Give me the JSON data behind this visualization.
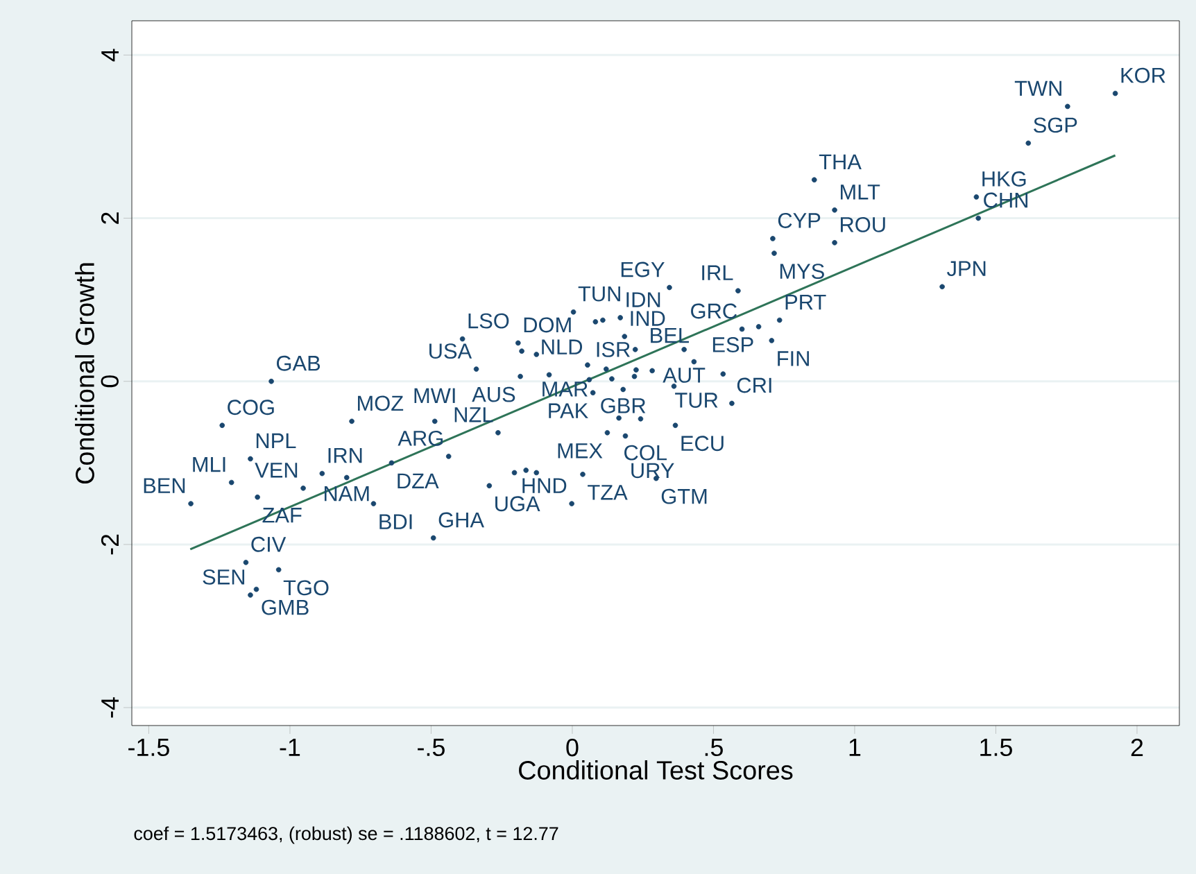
{
  "chart_data": {
    "type": "scatter",
    "xlabel": "Conditional Test Scores",
    "ylabel": "Conditional Growth",
    "xlim": [
      -1.56,
      2.15
    ],
    "ylim": [
      -4.22,
      4.42
    ],
    "xticks": [
      -1.5,
      -1,
      {
        "value": -0.5,
        "label": "-.5"
      },
      0,
      {
        "value": 0.5,
        "label": ".5"
      },
      1,
      1.5,
      2
    ],
    "yticks": [
      -4,
      -2,
      0,
      2,
      4
    ],
    "grid": "y",
    "series": [
      {
        "color": "#1a476f",
        "marker": "circle",
        "x": [
          1.923,
          1.754,
          1.615,
          0.857,
          0.929,
          1.431,
          1.438,
          0.71,
          0.715,
          0.929,
          1.31,
          0.587,
          0.344,
          0.734,
          0.601,
          0.66,
          0.706,
          0.004,
          0.082,
          0.108,
          0.17,
          0.185,
          0.223,
          0.396,
          0.431,
          -0.389,
          -0.192,
          -0.179,
          -0.127,
          -0.34,
          -0.184,
          -0.082,
          0.054,
          0.12,
          0.226,
          0.283,
          0.534,
          0.06,
          0.14,
          0.22,
          0.073,
          0.18,
          0.36,
          0.565,
          0.165,
          0.242,
          0.365,
          0.124,
          0.188,
          -0.263,
          -0.438,
          -0.205,
          -0.164,
          -0.127,
          0.037,
          -0.294,
          0.297,
          -0.002,
          -1.066,
          -1.24,
          -0.781,
          -0.487,
          -1.14,
          -1.207,
          -1.351,
          -1.115,
          -0.953,
          -0.886,
          -0.799,
          -0.64,
          -0.704,
          -0.492,
          -1.156,
          -1.04,
          -1.119,
          -1.14
        ],
        "values": [
          3.53,
          3.37,
          2.92,
          2.47,
          2.1,
          2.26,
          2.0,
          1.75,
          1.57,
          1.7,
          1.16,
          1.11,
          1.15,
          0.75,
          0.64,
          0.67,
          0.5,
          0.85,
          0.73,
          0.75,
          0.78,
          0.55,
          0.39,
          0.39,
          0.24,
          0.52,
          0.47,
          0.37,
          0.33,
          0.15,
          0.06,
          0.08,
          0.2,
          0.15,
          0.14,
          0.13,
          0.09,
          0.02,
          0.03,
          0.06,
          -0.14,
          -0.1,
          -0.06,
          -0.27,
          -0.45,
          -0.46,
          -0.54,
          -0.63,
          -0.67,
          -0.63,
          -0.92,
          -1.12,
          -1.09,
          -1.12,
          -1.14,
          -1.28,
          -1.19,
          -1.5,
          0,
          -0.54,
          -0.49,
          -0.49,
          -0.95,
          -1.24,
          -1.5,
          -1.42,
          -1.31,
          -1.13,
          -1.18,
          -1.0,
          -1.5,
          -1.92,
          -2.22,
          -2.31,
          -2.55,
          -2.62
        ]
      },
      {
        "type": "line",
        "color": "#2e7458",
        "marker": "none",
        "line_style": "solid",
        "x": [
          -1.353,
          1.923
        ],
        "values": [
          -2.06,
          2.77
        ]
      }
    ],
    "annotations": [
      {
        "text": "KOR",
        "x": 1.923,
        "y": 3.53
      },
      {
        "text": "TWN",
        "x": 1.754,
        "y": 3.37
      },
      {
        "text": "SGP",
        "x": 1.615,
        "y": 2.92
      },
      {
        "text": "THA",
        "x": 0.857,
        "y": 2.47
      },
      {
        "text": "MLT",
        "x": 0.929,
        "y": 2.1
      },
      {
        "text": "HKG",
        "x": 1.431,
        "y": 2.26
      },
      {
        "text": "CHN",
        "x": 1.438,
        "y": 2.0
      },
      {
        "text": "CYP",
        "x": 0.71,
        "y": 1.75
      },
      {
        "text": "MYS",
        "x": 0.715,
        "y": 1.57
      },
      {
        "text": "ROU",
        "x": 0.929,
        "y": 1.7
      },
      {
        "text": "JPN",
        "x": 1.31,
        "y": 1.16
      },
      {
        "text": "IRL",
        "x": 0.587,
        "y": 1.11
      },
      {
        "text": "EGY",
        "x": 0.344,
        "y": 1.15
      },
      {
        "text": "PRT",
        "x": 0.734,
        "y": 0.75
      },
      {
        "text": "GRC",
        "x": 0.601,
        "y": 0.64
      },
      {
        "text": "ESP",
        "x": 0.66,
        "y": 0.67
      },
      {
        "text": "FIN",
        "x": 0.706,
        "y": 0.5
      },
      {
        "text": "TUN",
        "x": 0.004,
        "y": 0.85
      },
      {
        "text": "IDN",
        "x": 0.17,
        "y": 0.78
      },
      {
        "text": "IND",
        "x": 0.185,
        "y": 0.55
      },
      {
        "text": "ISR",
        "x": 0.223,
        "y": 0.39
      },
      {
        "text": "AUT",
        "x": 0.396,
        "y": 0.39
      },
      {
        "text": "BEL",
        "x": 0.431,
        "y": 0.24
      },
      {
        "text": "LSO",
        "x": -0.389,
        "y": 0.52
      },
      {
        "text": "DOM",
        "x": -0.192,
        "y": 0.47
      },
      {
        "text": "MAR",
        "x": -0.127,
        "y": 0.33
      },
      {
        "text": "USA",
        "x": -0.34,
        "y": 0.15
      },
      {
        "text": "AUS",
        "x": -0.184,
        "y": 0.06
      },
      {
        "text": "NLD",
        "x": 0.054,
        "y": 0.2
      },
      {
        "text": "TUR",
        "x": 0.534,
        "y": 0.09
      },
      {
        "text": "PAK",
        "x": 0.073,
        "y": -0.14
      },
      {
        "text": "GBR",
        "x": 0.18,
        "y": -0.1
      },
      {
        "text": "CRI",
        "x": 0.565,
        "y": -0.27
      },
      {
        "text": "COL",
        "x": 0.165,
        "y": -0.45
      },
      {
        "text": "ECU",
        "x": 0.365,
        "y": -0.54
      },
      {
        "text": "MEX",
        "x": 0.124,
        "y": -0.63
      },
      {
        "text": "URY",
        "x": 0.188,
        "y": -0.67
      },
      {
        "text": "NZL",
        "x": -0.263,
        "y": -0.63
      },
      {
        "text": "ARG",
        "x": -0.438,
        "y": -0.92
      },
      {
        "text": "TZA",
        "x": 0.037,
        "y": -1.14
      },
      {
        "text": "UGA",
        "x": -0.294,
        "y": -1.28
      },
      {
        "text": "GTM",
        "x": 0.297,
        "y": -1.19
      },
      {
        "text": "HND",
        "x": -0.002,
        "y": -1.5
      },
      {
        "text": "GAB",
        "x": -1.066,
        "y": 0
      },
      {
        "text": "COG",
        "x": -1.24,
        "y": -0.54
      },
      {
        "text": "MOZ",
        "x": -0.781,
        "y": -0.49
      },
      {
        "text": "MWI",
        "x": -0.487,
        "y": -0.49
      },
      {
        "text": "NPL",
        "x": -1.14,
        "y": -0.95
      },
      {
        "text": "MLI",
        "x": -1.207,
        "y": -1.24
      },
      {
        "text": "BEN",
        "x": -1.351,
        "y": -1.5
      },
      {
        "text": "ZAF",
        "x": -1.115,
        "y": -1.42
      },
      {
        "text": "VEN",
        "x": -0.953,
        "y": -1.31
      },
      {
        "text": "IRN",
        "x": -0.886,
        "y": -1.13
      },
      {
        "text": "NAM",
        "x": -0.799,
        "y": -1.18
      },
      {
        "text": "DZA",
        "x": -0.64,
        "y": -1.0
      },
      {
        "text": "BDI",
        "x": -0.704,
        "y": -1.5
      },
      {
        "text": "GHA",
        "x": -0.492,
        "y": -1.92
      },
      {
        "text": "CIV",
        "x": -1.156,
        "y": -2.22
      },
      {
        "text": "TGO",
        "x": -1.04,
        "y": -2.31
      },
      {
        "text": "GMB",
        "x": -1.119,
        "y": -2.55
      },
      {
        "text": "SEN",
        "x": -1.14,
        "y": -2.62
      },
      "coef = 1.5173463, (robust) se = .1188602, t = 12.77"
    ]
  }
}
